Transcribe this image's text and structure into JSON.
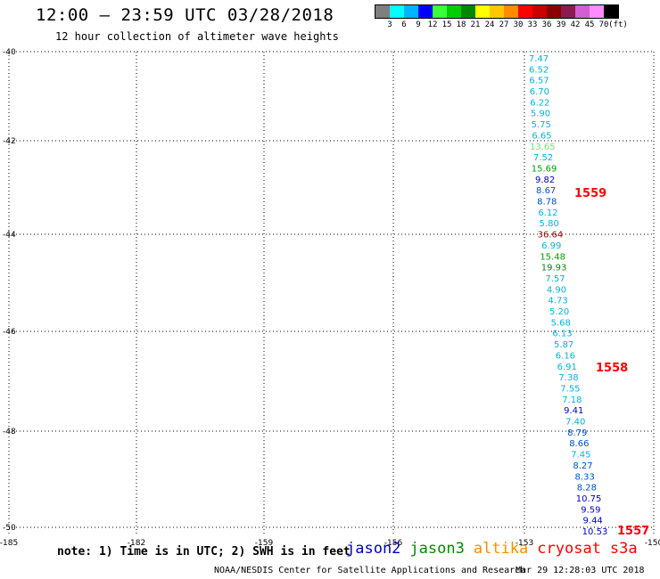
{
  "header": {
    "title": "12:00 — 23:59 UTC 03/28/2018",
    "subtitle": "12 hour collection of altimeter wave heights"
  },
  "legend": {
    "colors": [
      "#7f7f7f",
      "#00ffff",
      "#00b4ff",
      "#0000ff",
      "#3bff3b",
      "#00cd00",
      "#008700",
      "#ffff00",
      "#ffc800",
      "#ff8c00",
      "#ff0000",
      "#c80000",
      "#8b0000",
      "#8b1a4f",
      "#d25fd2",
      "#ff8cff",
      "#000000"
    ],
    "labels": [
      "3",
      "6",
      "9",
      "12",
      "15",
      "18",
      "21",
      "24",
      "27",
      "30",
      "33",
      "36",
      "39",
      "42",
      "45",
      "70",
      "(ft)"
    ]
  },
  "map": {
    "lat_labels": [
      "-40",
      "-42",
      "-44",
      "-46",
      "-48",
      "-50"
    ],
    "lon_labels": [
      "-185",
      "-182",
      "-159",
      "-156",
      "-153",
      "-150"
    ],
    "track_colors": {
      "jason2": "#0000c8",
      "jason3": "#008c00",
      "altika": "#ff8c00",
      "cryosat": "#ff0000",
      "s3a": "#ff0000",
      "cyan": "#00b4dc",
      "blue": "#0050d2",
      "green": "#00a000",
      "ltgreen": "#78dc78",
      "dark": "#8b0000"
    },
    "track_numbers": [
      {
        "text": "1559",
        "color": "cryosat"
      },
      {
        "text": "1558",
        "color": "cryosat"
      },
      {
        "text": "1557",
        "color": "cryosat"
      }
    ],
    "observations": [
      {
        "text": "7.47",
        "color": "cyan"
      },
      {
        "text": "6.52",
        "color": "cyan"
      },
      {
        "text": "6.57",
        "color": "cyan"
      },
      {
        "text": "6.70",
        "color": "cyan"
      },
      {
        "text": "6.22",
        "color": "cyan"
      },
      {
        "text": "5.90",
        "color": "cyan"
      },
      {
        "text": "5.75",
        "color": "cyan"
      },
      {
        "text": "6.65",
        "color": "cyan"
      },
      {
        "text": "13.65",
        "color": "ltgreen"
      },
      {
        "text": "7.52",
        "color": "cyan"
      },
      {
        "text": "15.69",
        "color": "green"
      },
      {
        "text": "9.82",
        "color": "jason2"
      },
      {
        "text": "8.67",
        "color": "blue"
      },
      {
        "text": "8.78",
        "color": "blue"
      },
      {
        "text": "6.12",
        "color": "cyan"
      },
      {
        "text": "5.80",
        "color": "cyan"
      },
      {
        "text": "36.64",
        "color": "dark"
      },
      {
        "text": "6.99",
        "color": "cyan"
      },
      {
        "text": "15.48",
        "color": "green"
      },
      {
        "text": "19.93",
        "color": "jason3"
      },
      {
        "text": "7.57",
        "color": "cyan"
      },
      {
        "text": "4.90",
        "color": "cyan"
      },
      {
        "text": "4.73",
        "color": "cyan"
      },
      {
        "text": "5.20",
        "color": "cyan"
      },
      {
        "text": "5.68",
        "color": "cyan"
      },
      {
        "text": "6.13",
        "color": "cyan"
      },
      {
        "text": "5.87",
        "color": "cyan"
      },
      {
        "text": "6.16",
        "color": "cyan"
      },
      {
        "text": "6.91",
        "color": "cyan"
      },
      {
        "text": "7.38",
        "color": "cyan"
      },
      {
        "text": "7.55",
        "color": "cyan"
      },
      {
        "text": "7.18",
        "color": "cyan"
      },
      {
        "text": "9.41",
        "color": "jason2"
      },
      {
        "text": "7.40",
        "color": "cyan"
      },
      {
        "text": "8.79",
        "color": "blue"
      },
      {
        "text": "8.66",
        "color": "blue"
      },
      {
        "text": "7.45",
        "color": "cyan"
      },
      {
        "text": "8.27",
        "color": "blue"
      },
      {
        "text": "8.33",
        "color": "blue"
      },
      {
        "text": "8.28",
        "color": "blue"
      },
      {
        "text": "10.75",
        "color": "jason2"
      },
      {
        "text": "9.59",
        "color": "jason2"
      },
      {
        "text": "9.44",
        "color": "jason2"
      },
      {
        "text": "10.53",
        "color": "jason2"
      }
    ]
  },
  "note": "note: 1) Time is in UTC; 2) SWH is in feet",
  "satellites": [
    {
      "name": "jason2",
      "color": "#0000c8"
    },
    {
      "name": "jason3",
      "color": "#008c00"
    },
    {
      "name": "altika",
      "color": "#ff8c00"
    },
    {
      "name": "cryosat",
      "color": "#ff0000"
    },
    {
      "name": "s3a",
      "color": "#ff0000"
    }
  ],
  "footer": {
    "left": "NOAA/NESDIS Center for Satellite Applications and Research",
    "right": "Mar 29 12:28:03 UTC 2018"
  }
}
